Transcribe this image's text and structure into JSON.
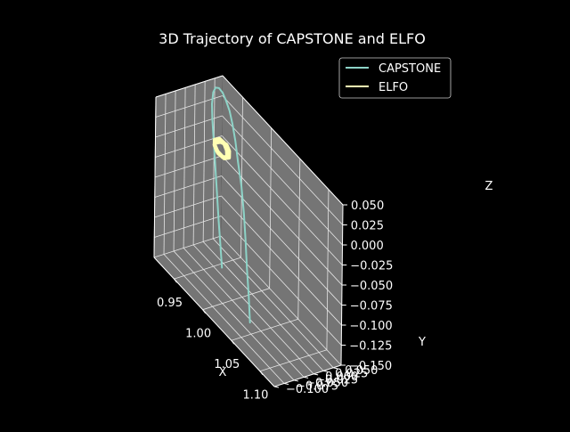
{
  "chart_data": {
    "type": "line",
    "projection": "3d",
    "title": "3D Trajectory of CAPSTONE and ELFO",
    "xlabel": "X",
    "ylabel": "Y",
    "zlabel": "Z",
    "xticks": [
      "0.95",
      "1.00",
      "1.05",
      "1.10"
    ],
    "yticks": [
      "−0.100",
      "−0.075",
      "−0.050",
      "−0.025",
      "0.000",
      "0.025",
      "0.050"
    ],
    "zticks": [
      "−0.150",
      "−0.125",
      "−0.100",
      "−0.075",
      "−0.050",
      "−0.025",
      "0.000",
      "0.025",
      "0.050"
    ],
    "xlim": [
      0.915,
      1.125
    ],
    "ylim": [
      -0.1,
      0.07
    ],
    "zlim": [
      -0.15,
      0.05
    ],
    "grid": true,
    "legend_position": "top-right",
    "colors": {
      "background": "#000000",
      "pane": "#757575",
      "grid": "#e6e6e6",
      "capstone": "#8dd3c7",
      "elfo": "#ffffb3"
    },
    "series": [
      {
        "name": "CAPSTONE",
        "color": "#8dd3c7",
        "x": [
          0.985,
          0.975,
          0.965,
          0.955,
          0.945,
          0.935,
          0.925,
          0.92,
          0.918,
          0.92,
          0.925,
          0.932,
          0.94,
          0.95,
          0.96,
          0.972,
          0.985,
          1.0,
          1.015,
          1.03,
          1.045,
          1.06,
          1.075
        ],
        "y": [
          -0.03,
          -0.02,
          -0.01,
          0.0,
          0.01,
          0.02,
          0.03,
          0.036,
          0.042,
          0.045,
          0.046,
          0.045,
          0.042,
          0.037,
          0.03,
          0.02,
          0.008,
          -0.005,
          -0.02,
          -0.037,
          -0.055,
          -0.072,
          -0.09
        ],
        "z": [
          -0.12,
          -0.1,
          -0.08,
          -0.058,
          -0.035,
          -0.012,
          0.01,
          0.024,
          0.036,
          0.043,
          0.046,
          0.046,
          0.043,
          0.038,
          0.03,
          0.02,
          0.006,
          -0.01,
          -0.03,
          -0.05,
          -0.07,
          -0.09,
          -0.11
        ]
      },
      {
        "name": "ELFO",
        "color": "#ffffb3",
        "x": [
          0.95,
          0.955,
          0.962,
          0.968,
          0.972,
          0.968,
          0.96,
          0.952,
          0.948,
          0.952,
          0.958,
          0.965,
          0.97,
          0.966,
          0.958,
          0.951,
          0.95
        ],
        "y": [
          0.002,
          0.008,
          0.012,
          0.01,
          0.004,
          -0.002,
          -0.006,
          -0.003,
          0.003,
          0.009,
          0.012,
          0.009,
          0.003,
          -0.003,
          -0.006,
          -0.002,
          0.002
        ],
        "z": [
          0.004,
          0.008,
          0.009,
          0.006,
          0.002,
          -0.001,
          0.0,
          0.003,
          0.006,
          0.009,
          0.008,
          0.005,
          0.001,
          -0.001,
          0.001,
          0.003,
          0.004
        ]
      }
    ]
  }
}
